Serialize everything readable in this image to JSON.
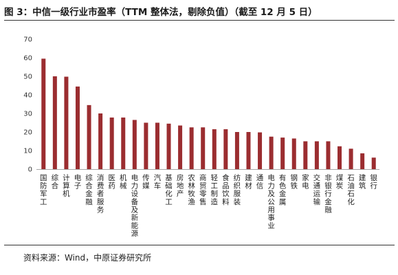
{
  "title": "图 3：中信一级行业市盈率（TTM 整体法，剔除负值）（截至 12 月 5 日）",
  "source": "资料来源：Wind，中原证券研究所",
  "chart_data": {
    "type": "bar",
    "title": "图 3：中信一级行业市盈率（TTM 整体法，剔除负值）（截至 12 月 5 日）",
    "xlabel": "",
    "ylabel": "",
    "ylim": [
      0,
      70
    ],
    "yticks": [
      "0",
      "10",
      "20",
      "30",
      "40",
      "50",
      "60",
      "70"
    ],
    "grid": false,
    "legend": "none",
    "categories": [
      "国防军工",
      "综合",
      "计算机",
      "电子",
      "综合金融",
      "消费者服务",
      "医药",
      "机械",
      "电力设备及新能源",
      "传媒",
      "汽车",
      "基础化工",
      "房地产",
      "农林牧渔",
      "商贸零售",
      "轻工制造",
      "食品饮料",
      "纺织服装",
      "建材",
      "通信",
      "电力及公用事业",
      "有色金属",
      "钢铁",
      "家电",
      "交通运输",
      "非银行金融",
      "煤炭",
      "石油石化",
      "建筑",
      "银行"
    ],
    "values": [
      59.5,
      50,
      49.8,
      44.5,
      34.5,
      30,
      27.8,
      27.8,
      26.5,
      25,
      25,
      24.5,
      23.5,
      22.5,
      22.5,
      21.5,
      21.5,
      20,
      20,
      19.8,
      17.5,
      17,
      16.5,
      15,
      15,
      15,
      12.3,
      11,
      8.5,
      6.2
    ],
    "colors": {
      "bar": "#9b2d30",
      "axis": "#a6a6a6"
    }
  }
}
